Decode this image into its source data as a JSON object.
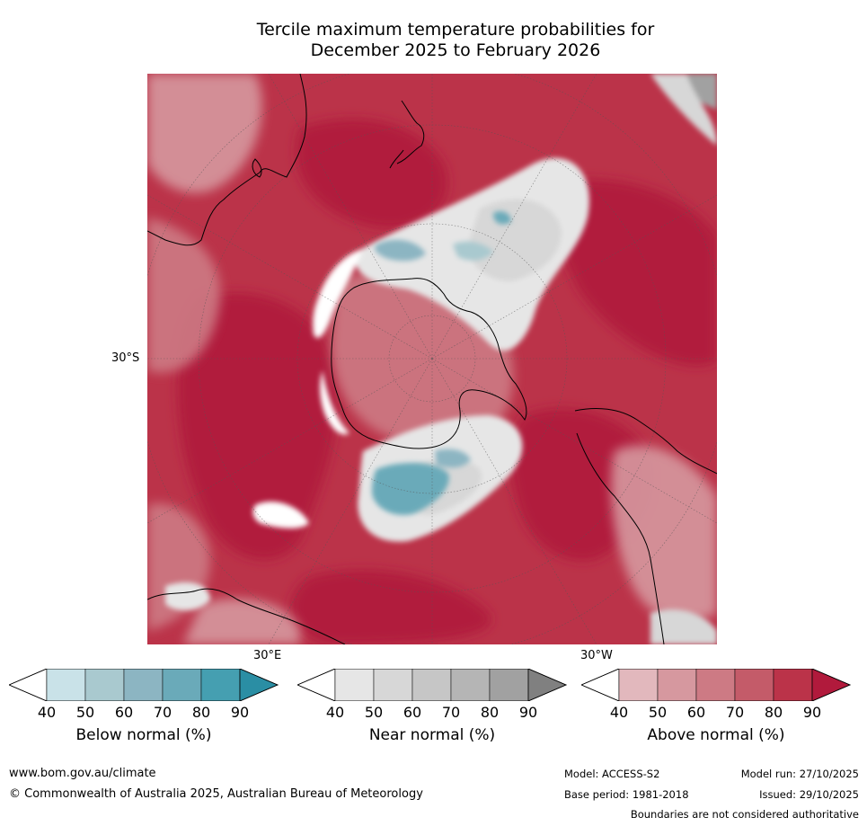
{
  "title": {
    "line1": "Tercile maximum temperature probabilities for",
    "line2": "December 2025 to February 2026"
  },
  "map": {
    "projection": "south-polar-stereographic",
    "lat_label": "30°S",
    "lon_label_east": "30°E",
    "lon_label_west": "30°W"
  },
  "colorbars": [
    {
      "id": "below",
      "title": "Below normal (%)",
      "ticks": [
        "40",
        "50",
        "60",
        "70",
        "80",
        "90"
      ],
      "colors": [
        "#ffffff",
        "#c9e2e8",
        "#a9c9cf",
        "#8cb5c2",
        "#6aaab9",
        "#459fb1",
        "#2a8ea4"
      ]
    },
    {
      "id": "near",
      "title": "Near normal (%)",
      "ticks": [
        "40",
        "50",
        "60",
        "70",
        "80",
        "90"
      ],
      "colors": [
        "#ffffff",
        "#e6e6e6",
        "#d7d7d7",
        "#c6c6c6",
        "#b5b5b5",
        "#a1a1a1",
        "#808080"
      ]
    },
    {
      "id": "above",
      "title": "Above normal (%)",
      "ticks": [
        "40",
        "50",
        "60",
        "70",
        "80",
        "90"
      ],
      "colors": [
        "#ffffff",
        "#e2b8bd",
        "#d6989f",
        "#cd7a84",
        "#c45b69",
        "#bb3349",
        "#b11a3c"
      ]
    }
  ],
  "footer": {
    "website": "www.bom.gov.au/climate",
    "copyright": "© Commonwealth of Australia 2025, Australian Bureau of Meteorology",
    "model": "Model: ACCESS-S2",
    "model_run": "Model run: 27/10/2025",
    "base_period": "Base period: 1981-2018",
    "issued": "Issued: 29/10/2025",
    "disclaimer": "Boundaries are not considered authoritative"
  }
}
